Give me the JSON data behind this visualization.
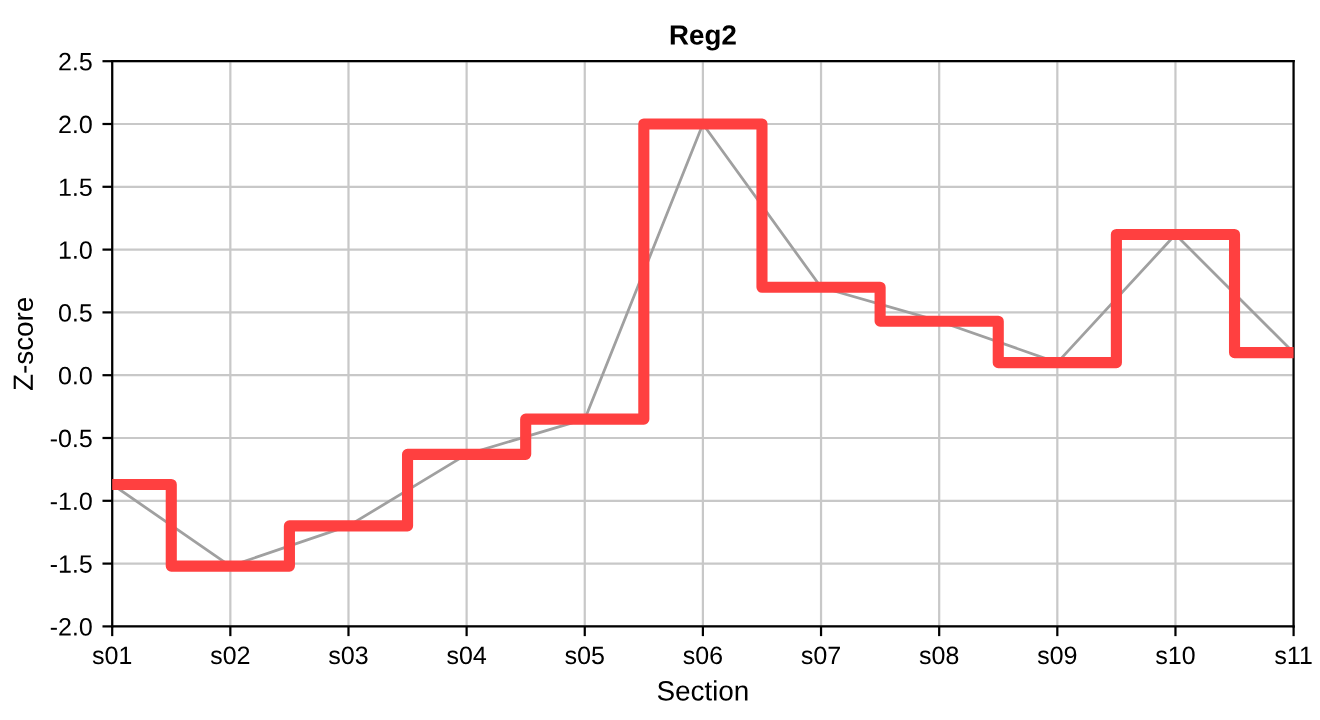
{
  "chart_data": {
    "type": "step",
    "title": "Reg2",
    "xlabel": "Section",
    "ylabel": "Z-score",
    "categories": [
      "s01",
      "s02",
      "s03",
      "s04",
      "s05",
      "s06",
      "s07",
      "s08",
      "s09",
      "s10",
      "s11"
    ],
    "series": [
      {
        "type": "line",
        "color": "#a0a0a0",
        "values": [
          -0.87,
          -1.52,
          -1.2,
          -0.63,
          -0.35,
          2.0,
          0.7,
          0.43,
          0.1,
          1.12,
          0.18
        ]
      },
      {
        "color": "#ff4040",
        "values": [
          -0.87,
          -1.52,
          -1.2,
          -0.63,
          -0.35,
          2.0,
          0.7,
          0.43,
          0.1,
          1.12,
          0.18
        ]
      }
    ],
    "ylim": [
      -2.0,
      2.5
    ],
    "yticks": [
      {
        "value": -2.0,
        "label": "-2.0"
      },
      {
        "value": -1.5,
        "label": "-1.5"
      },
      {
        "value": -1.0,
        "label": "-1.0"
      },
      {
        "value": -0.5,
        "label": "-0.5"
      },
      {
        "value": 0.0,
        "label": "0.0"
      },
      {
        "value": 0.5,
        "label": "0.5"
      },
      {
        "value": 1.0,
        "label": "1.0"
      },
      {
        "value": 1.5,
        "label": "1.5"
      },
      {
        "value": 2.0,
        "label": "2.0"
      },
      {
        "value": 2.5,
        "label": "2.5"
      }
    ],
    "grid": true
  }
}
